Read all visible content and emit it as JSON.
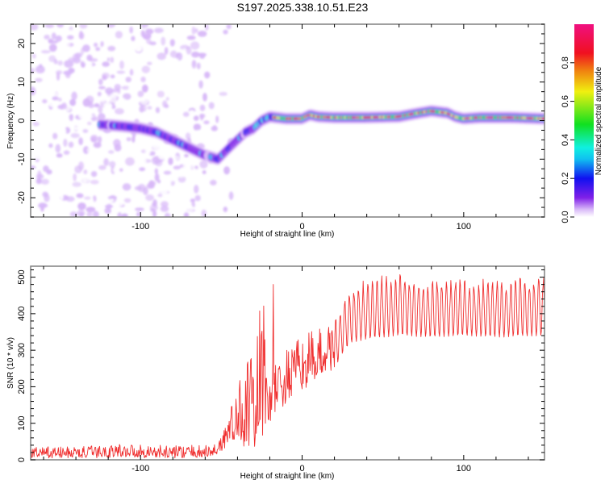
{
  "title": "S197.2025.338.10.51.E23",
  "chart_data": [
    {
      "type": "heatmap",
      "title": "S197.2025.338.10.51.E23",
      "xlabel": "Height of straight line (km)",
      "ylabel": "Frequency (Hz)",
      "xlim": [
        -168,
        150
      ],
      "ylim": [
        -25,
        25
      ],
      "xticks": [
        -100,
        0,
        100
      ],
      "xtick_labels": [
        "-100",
        "0",
        "100"
      ],
      "yticks": [
        -20,
        -10,
        0,
        10,
        20
      ],
      "ytick_labels": [
        "-20",
        "-10",
        "0",
        "10",
        "20"
      ],
      "grid": false,
      "colorbar": {
        "label": "Normalized spectral amplitude",
        "range": [
          0,
          1
        ],
        "ticks": [
          0.0,
          0.2,
          0.4,
          0.6,
          0.8
        ],
        "tick_labels": [
          "0.0",
          "0.2",
          "0.4",
          "0.6",
          "0.8"
        ],
        "colormap": [
          "#ffffff",
          "#d8b8f8",
          "#8020e8",
          "#1010f0",
          "#10c0f0",
          "#10f0e0",
          "#10e020",
          "#f0f010",
          "#f08010",
          "#f01020",
          "#f01080"
        ]
      },
      "ridge": {
        "description_points_km_hz": [
          [
            -125,
            -1
          ],
          [
            -110,
            -1.5
          ],
          [
            -100,
            -2
          ],
          [
            -90,
            -3
          ],
          [
            -80,
            -5
          ],
          [
            -70,
            -7
          ],
          [
            -60,
            -9
          ],
          [
            -52,
            -10
          ],
          [
            -45,
            -7
          ],
          [
            -40,
            -5
          ],
          [
            -35,
            -3
          ],
          [
            -30,
            -2
          ],
          [
            -25,
            0
          ],
          [
            -20,
            1
          ],
          [
            -10,
            0.5
          ],
          [
            0,
            0.5
          ],
          [
            5,
            1.5
          ],
          [
            10,
            1
          ],
          [
            20,
            0.8
          ],
          [
            40,
            0.8
          ],
          [
            60,
            1
          ],
          [
            70,
            1.8
          ],
          [
            80,
            2.5
          ],
          [
            90,
            2
          ],
          [
            95,
            1
          ],
          [
            100,
            0.5
          ],
          [
            110,
            0.8
          ],
          [
            130,
            0.8
          ],
          [
            150,
            0.5
          ]
        ],
        "peak_amplitude": 1.0
      },
      "noise_region_km": [
        -168,
        -55
      ]
    },
    {
      "type": "line",
      "xlabel": "Height of straight line (km)",
      "ylabel": "SNR (10 * v/v)",
      "xlim": [
        -168,
        150
      ],
      "ylim": [
        0,
        530
      ],
      "xticks": [
        -100,
        0,
        100
      ],
      "xtick_labels": [
        "-100",
        "0",
        "100"
      ],
      "yticks": [
        0,
        100,
        200,
        300,
        400,
        500
      ],
      "ytick_labels": [
        "0",
        "100",
        "200",
        "300",
        "400",
        "500"
      ],
      "grid": false,
      "series": [
        {
          "name": "SNR",
          "color": "#f03030",
          "envelope_x": [
            -168,
            -130,
            -110,
            -90,
            -70,
            -55,
            -50,
            -45,
            -40,
            -35,
            -30,
            -25,
            -20,
            -15,
            -10,
            -5,
            0,
            10,
            20,
            25,
            30,
            40,
            60,
            80,
            100,
            120,
            150
          ],
          "envelope_low": [
            5,
            5,
            8,
            5,
            5,
            8,
            20,
            40,
            60,
            30,
            10,
            60,
            100,
            130,
            150,
            180,
            190,
            220,
            250,
            290,
            320,
            330,
            340,
            335,
            340,
            335,
            340
          ],
          "envelope_high": [
            35,
            38,
            45,
            40,
            40,
            40,
            80,
            140,
            180,
            320,
            260,
            480,
            270,
            280,
            300,
            320,
            340,
            360,
            390,
            440,
            470,
            500,
            520,
            500,
            500,
            500,
            510
          ]
        }
      ]
    }
  ]
}
